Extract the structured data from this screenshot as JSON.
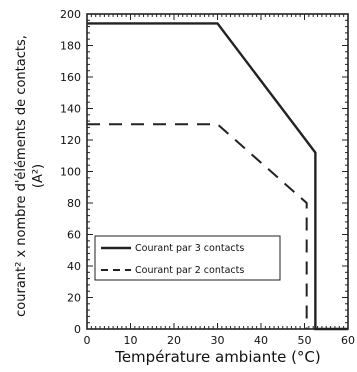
{
  "chart_data": {
    "type": "line",
    "xlabel": "Température ambiante (°C)",
    "ylabel_line1": "courant² x nombre d'éléments de contacts,",
    "ylabel_line2": "(A²)",
    "xlim": [
      0,
      60
    ],
    "ylim": [
      0,
      200
    ],
    "x_ticks": [
      0,
      10,
      20,
      30,
      40,
      50,
      60
    ],
    "y_ticks": [
      0,
      20,
      40,
      60,
      80,
      100,
      120,
      140,
      160,
      180,
      200
    ],
    "grid": false,
    "legend_placement": "lower-left",
    "series": [
      {
        "name": "Courant par 3 contacts",
        "style": "solid",
        "color": "#222222",
        "x": [
          0,
          30,
          52.5,
          52.5,
          60
        ],
        "y": [
          194,
          194,
          112,
          0,
          0
        ]
      },
      {
        "name": "Courant par 2 contacts",
        "style": "dashed",
        "color": "#222222",
        "x": [
          0,
          30,
          50.5,
          50.5
        ],
        "y": [
          130,
          130,
          80,
          0
        ]
      }
    ]
  }
}
